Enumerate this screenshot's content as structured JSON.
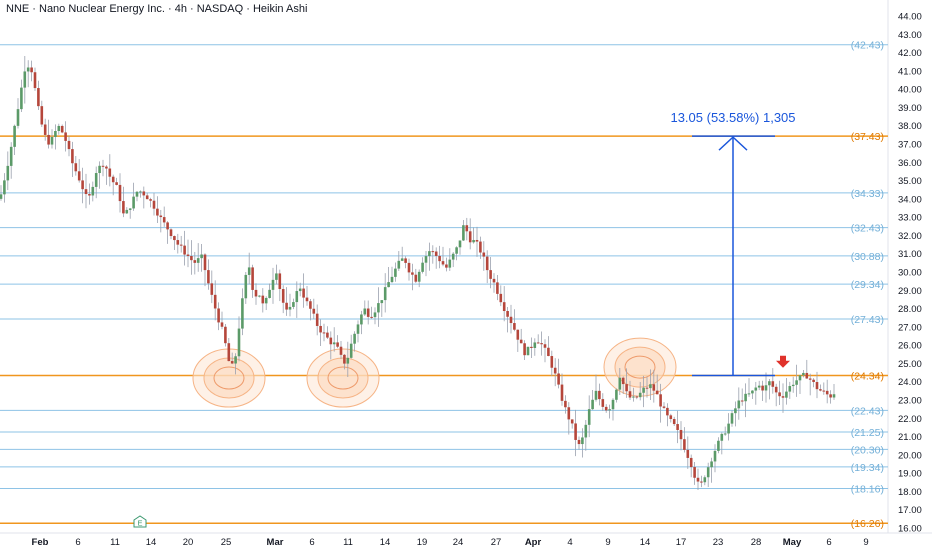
{
  "header": {
    "title": "NNE · Nano Nuclear Energy Inc. · 4h · NASDAQ · Heikin Ashi"
  },
  "colors": {
    "bull": "#5b9a68",
    "bear": "#b5463b",
    "wick": "#9aa0ad",
    "blue_level": "#8ec3e6",
    "orange_level": "#f0961e",
    "measure": "#1a56db",
    "circle": "#f6b486",
    "arrow": "#e0322b"
  },
  "chart_data": {
    "type": "candlestick",
    "title": "NNE · Nano Nuclear Energy Inc. · 4h · NASDAQ · Heikin Ashi",
    "ylim": [
      15.6,
      44.6
    ],
    "y_ticks": [
      "16.00",
      "17.00",
      "18.00",
      "19.00",
      "20.00",
      "21.00",
      "22.00",
      "23.00",
      "24.00",
      "25.00",
      "26.00",
      "27.00",
      "28.00",
      "29.00",
      "30.00",
      "31.00",
      "32.00",
      "33.00",
      "34.00",
      "35.00",
      "36.00",
      "37.00",
      "38.00",
      "39.00",
      "40.00",
      "41.00",
      "42.00",
      "43.00",
      "44.00"
    ],
    "x_ticks": [
      {
        "label": "Feb",
        "bold": true
      },
      {
        "label": "6"
      },
      {
        "label": "11"
      },
      {
        "label": "14"
      },
      {
        "label": "20"
      },
      {
        "label": "25"
      },
      {
        "label": "Mar",
        "bold": true
      },
      {
        "label": "6"
      },
      {
        "label": "11"
      },
      {
        "label": "14"
      },
      {
        "label": "19"
      },
      {
        "label": "24"
      },
      {
        "label": "27"
      },
      {
        "label": "Apr",
        "bold": true
      },
      {
        "label": "4"
      },
      {
        "label": "9"
      },
      {
        "label": "14"
      },
      {
        "label": "17"
      },
      {
        "label": "23"
      },
      {
        "label": "28"
      },
      {
        "label": "May",
        "bold": true
      },
      {
        "label": "6"
      },
      {
        "label": "9"
      }
    ],
    "levels": [
      {
        "value": 42.43,
        "label": "(42.43)",
        "color": "blue"
      },
      {
        "value": 37.43,
        "label": "(37.43)",
        "color": "orange"
      },
      {
        "value": 34.33,
        "label": "(34.33)",
        "color": "blue"
      },
      {
        "value": 32.43,
        "label": "(32.43)",
        "color": "blue"
      },
      {
        "value": 30.88,
        "label": "(30.88)",
        "color": "blue"
      },
      {
        "value": 29.34,
        "label": "(29.34)",
        "color": "blue"
      },
      {
        "value": 27.43,
        "label": "(27.43)",
        "color": "blue"
      },
      {
        "value": 24.34,
        "label": "(24.34)",
        "color": "orange"
      },
      {
        "value": 22.43,
        "label": "(22.43)",
        "color": "blue"
      },
      {
        "value": 21.25,
        "label": "(21.25)",
        "color": "blue"
      },
      {
        "value": 20.3,
        "label": "(20.30)",
        "color": "blue"
      },
      {
        "value": 19.34,
        "label": "(19.34)",
        "color": "blue"
      },
      {
        "value": 18.16,
        "label": "(18.16)",
        "color": "blue"
      },
      {
        "value": 16.26,
        "label": "(16.26)",
        "color": "orange"
      }
    ],
    "measurement": {
      "text": "13.05 (53.58%) 1,305",
      "from": 24.34,
      "to": 37.43
    },
    "support_circles": [
      {
        "date": "Feb 25",
        "value": 24.2
      },
      {
        "date": "Mar 10",
        "value": 24.2
      },
      {
        "date": "Apr 14",
        "value": 24.8
      }
    ],
    "down_arrow": {
      "date": "Apr 30",
      "value": 24.6
    },
    "event_marker": {
      "label": "E",
      "date": "Feb 13"
    },
    "price_path": [
      [
        0,
        34.0
      ],
      [
        10,
        36.5
      ],
      [
        18,
        39.0
      ],
      [
        26,
        41.5
      ],
      [
        32,
        41.0
      ],
      [
        38,
        39.0
      ],
      [
        44,
        37.5
      ],
      [
        50,
        37.0
      ],
      [
        58,
        38.0
      ],
      [
        64,
        37.5
      ],
      [
        72,
        36.0
      ],
      [
        80,
        35.0
      ],
      [
        88,
        33.8
      ],
      [
        96,
        35.5
      ],
      [
        104,
        36.0
      ],
      [
        110,
        35.2
      ],
      [
        118,
        34.5
      ],
      [
        124,
        33.0
      ],
      [
        130,
        33.6
      ],
      [
        138,
        34.5
      ],
      [
        146,
        34.2
      ],
      [
        154,
        33.6
      ],
      [
        162,
        32.8
      ],
      [
        170,
        32.2
      ],
      [
        178,
        31.5
      ],
      [
        186,
        31.0
      ],
      [
        194,
        30.5
      ],
      [
        202,
        30.8
      ],
      [
        210,
        29.0
      ],
      [
        218,
        27.5
      ],
      [
        224,
        26.5
      ],
      [
        228,
        25.2
      ],
      [
        232,
        24.8
      ],
      [
        236,
        25.5
      ],
      [
        240,
        27.5
      ],
      [
        246,
        29.8
      ],
      [
        250,
        30.4
      ],
      [
        254,
        28.5
      ],
      [
        258,
        29.0
      ],
      [
        264,
        28.0
      ],
      [
        270,
        29.2
      ],
      [
        276,
        30.2
      ],
      [
        282,
        28.5
      ],
      [
        288,
        27.6
      ],
      [
        294,
        28.6
      ],
      [
        300,
        29.2
      ],
      [
        306,
        28.4
      ],
      [
        312,
        27.8
      ],
      [
        318,
        27.0
      ],
      [
        324,
        26.6
      ],
      [
        330,
        26.2
      ],
      [
        336,
        26.0
      ],
      [
        342,
        25.2
      ],
      [
        346,
        25.0
      ],
      [
        352,
        26.2
      ],
      [
        358,
        27.2
      ],
      [
        364,
        28.0
      ],
      [
        370,
        27.6
      ],
      [
        376,
        28.0
      ],
      [
        382,
        28.6
      ],
      [
        390,
        29.6
      ],
      [
        398,
        30.4
      ],
      [
        404,
        30.8
      ],
      [
        410,
        30.0
      ],
      [
        416,
        29.6
      ],
      [
        422,
        30.6
      ],
      [
        430,
        31.2
      ],
      [
        438,
        30.8
      ],
      [
        446,
        30.2
      ],
      [
        452,
        30.8
      ],
      [
        458,
        31.4
      ],
      [
        464,
        32.6
      ],
      [
        470,
        31.8
      ],
      [
        476,
        31.6
      ],
      [
        482,
        31.0
      ],
      [
        488,
        30.0
      ],
      [
        494,
        29.4
      ],
      [
        500,
        28.6
      ],
      [
        506,
        27.8
      ],
      [
        512,
        27.2
      ],
      [
        518,
        26.4
      ],
      [
        524,
        25.6
      ],
      [
        530,
        25.8
      ],
      [
        536,
        26.4
      ],
      [
        542,
        26.0
      ],
      [
        548,
        25.4
      ],
      [
        554,
        24.6
      ],
      [
        560,
        23.4
      ],
      [
        566,
        22.4
      ],
      [
        572,
        21.6
      ],
      [
        576,
        20.8
      ],
      [
        580,
        20.4
      ],
      [
        584,
        21.2
      ],
      [
        590,
        22.6
      ],
      [
        596,
        23.4
      ],
      [
        602,
        22.8
      ],
      [
        608,
        22.4
      ],
      [
        614,
        23.2
      ],
      [
        620,
        24.4
      ],
      [
        626,
        23.4
      ],
      [
        632,
        23.0
      ],
      [
        638,
        23.2
      ],
      [
        644,
        23.6
      ],
      [
        650,
        23.8
      ],
      [
        656,
        23.4
      ],
      [
        662,
        22.6
      ],
      [
        668,
        22.0
      ],
      [
        674,
        21.6
      ],
      [
        680,
        21.0
      ],
      [
        686,
        20.2
      ],
      [
        692,
        19.4
      ],
      [
        696,
        18.6
      ],
      [
        700,
        18.2
      ],
      [
        704,
        18.8
      ],
      [
        710,
        19.6
      ],
      [
        716,
        20.4
      ],
      [
        722,
        21.0
      ],
      [
        728,
        21.6
      ],
      [
        734,
        22.4
      ],
      [
        740,
        23.0
      ],
      [
        746,
        23.2
      ],
      [
        752,
        23.4
      ],
      [
        758,
        23.8
      ],
      [
        764,
        23.6
      ],
      [
        770,
        24.0
      ],
      [
        776,
        23.4
      ],
      [
        782,
        23.2
      ],
      [
        788,
        23.6
      ],
      [
        794,
        24.0
      ],
      [
        800,
        24.2
      ],
      [
        806,
        24.4
      ],
      [
        812,
        24.0
      ],
      [
        818,
        23.6
      ],
      [
        824,
        23.4
      ],
      [
        830,
        23.2
      ],
      [
        836,
        23.5
      ]
    ]
  }
}
